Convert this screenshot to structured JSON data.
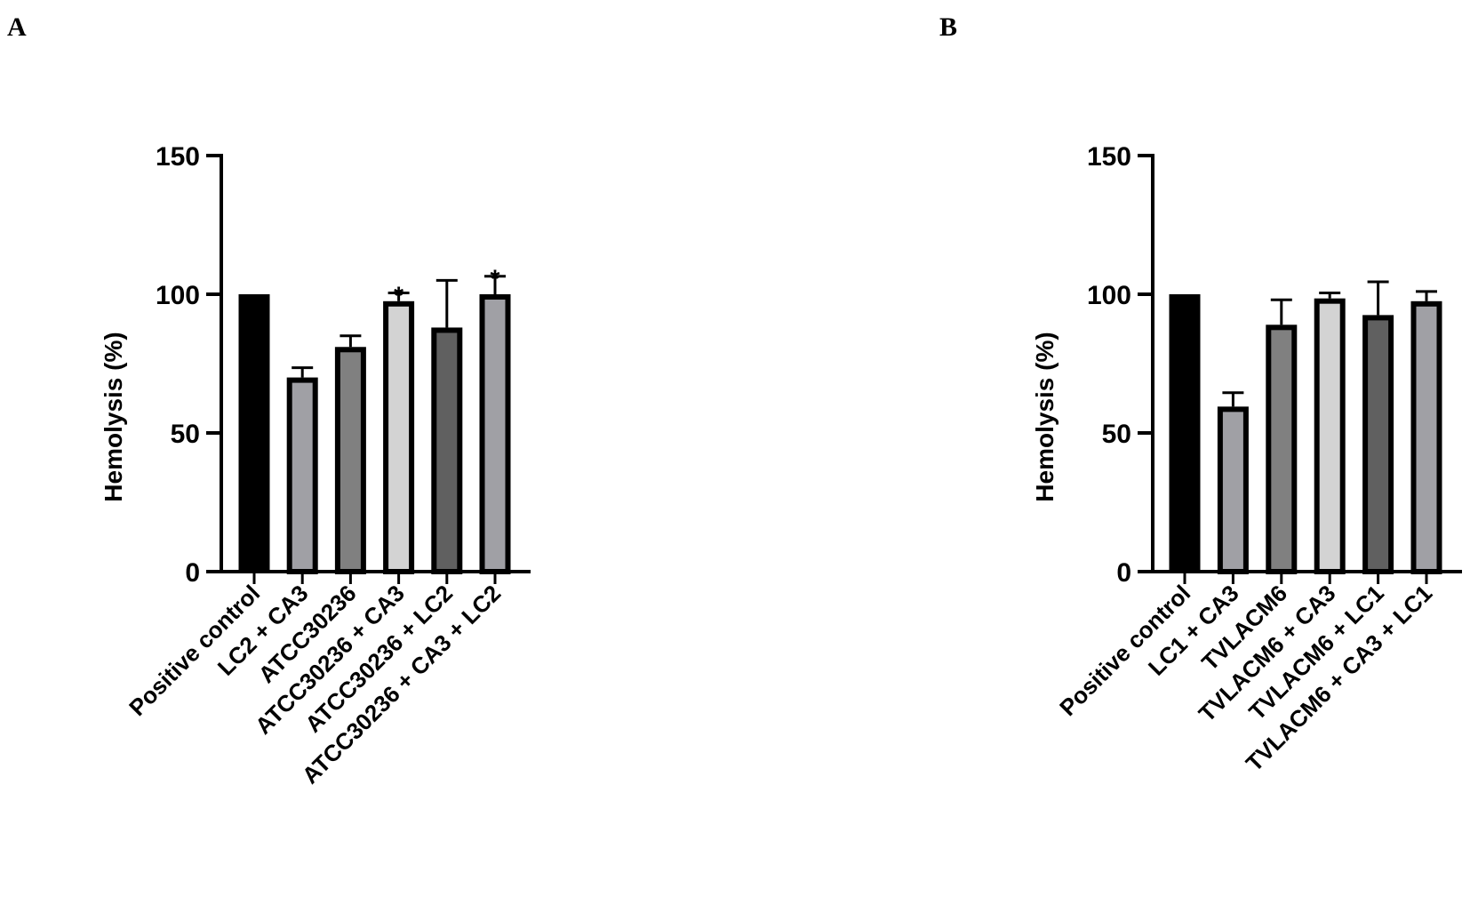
{
  "chart_data": [
    {
      "type": "bar",
      "panel_label": "A",
      "ylabel": "Hemolysis (%)",
      "xlabel": "",
      "ylim": [
        0,
        150
      ],
      "yticks": [
        0,
        50,
        100,
        150
      ],
      "grid": false,
      "categories": [
        "Positive control",
        "LC2 + CA3",
        "ATCC30236",
        "ATCC30236 + CA3",
        "ATCC30236 + LC2",
        "ATCC30236 + CA3 + LC2"
      ],
      "values": [
        100,
        70,
        81,
        97.5,
        88,
        100
      ],
      "error_upper": [
        null,
        73.5,
        85,
        100.5,
        105,
        106.5
      ],
      "annotations": [
        "",
        "",
        "",
        "*",
        "",
        "*"
      ],
      "colors": [
        "#000000",
        "#a0a0a5",
        "#808080",
        "#d3d3d3",
        "#606060",
        "#a0a0a5"
      ]
    },
    {
      "type": "bar",
      "panel_label": "B",
      "ylabel": "Hemolysis (%)",
      "xlabel": "",
      "ylim": [
        0,
        150
      ],
      "yticks": [
        0,
        50,
        100,
        150
      ],
      "grid": false,
      "categories": [
        "Positive control",
        "LC1 + CA3",
        "TVLACM6",
        "TVLACM6 + CA3",
        "TVLACM6 + LC1",
        "TVLACM6 + CA3 + LC1"
      ],
      "values": [
        100,
        59.5,
        89,
        98.5,
        92.5,
        97.5
      ],
      "error_upper": [
        null,
        64.5,
        98,
        100.5,
        104.5,
        101
      ],
      "annotations": [
        "",
        "",
        "",
        "",
        "",
        ""
      ],
      "colors": [
        "#000000",
        "#a0a0a5",
        "#808080",
        "#d3d3d3",
        "#606060",
        "#a0a0a5"
      ]
    }
  ]
}
